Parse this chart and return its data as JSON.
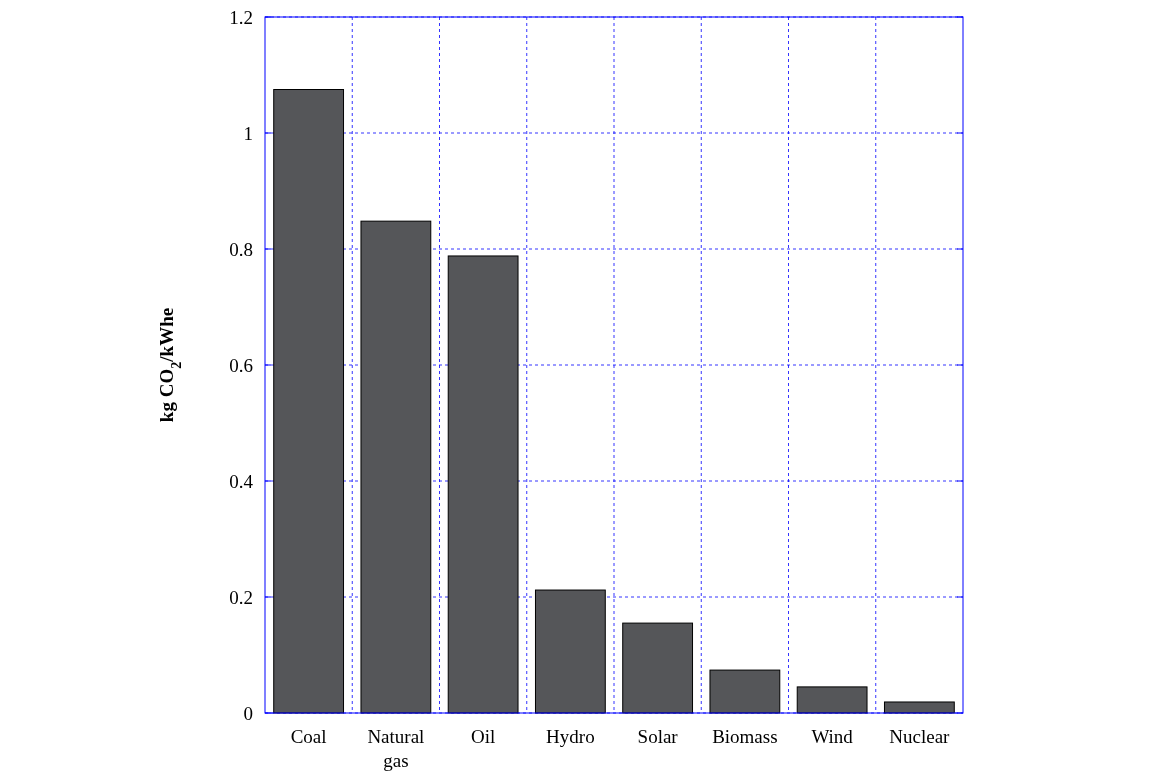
{
  "chart_data": {
    "type": "bar",
    "ylabel": "kg CO$_{2}$/kWhe",
    "categories": [
      "Coal",
      "Natural gas",
      "Oil",
      "Hydro",
      "Solar",
      "Biomass",
      "Wind",
      "Nuclear"
    ],
    "values": [
      1.075,
      0.848,
      0.788,
      0.212,
      0.155,
      0.074,
      0.045,
      0.019
    ],
    "color": "#555659",
    "ylim": [
      0,
      1.2
    ],
    "yticks": [
      0,
      0.2,
      0.4,
      0.6,
      0.8,
      1,
      1.2
    ],
    "grid": true
  }
}
